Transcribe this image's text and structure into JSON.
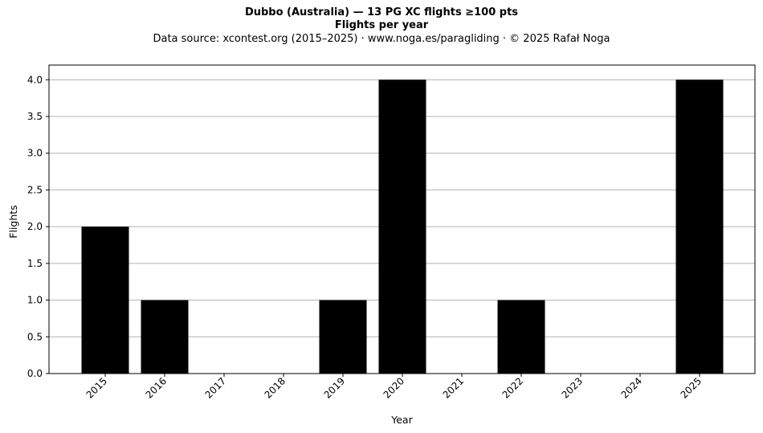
{
  "header": {
    "title": "Dubbo (Australia)  —  13 PG XC flights ≥100 pts",
    "subtitle": "Flights per year",
    "source": "Data source: xcontest.org (2015–2025)  ·  www.noga.es/paragliding  ·  © 2025 Rafał Noga"
  },
  "chart_data": {
    "type": "bar",
    "title": "Dubbo (Australia)  —  13 PG XC flights ≥100 pts",
    "subtitle": "Flights per year",
    "xlabel": "Year",
    "ylabel": "Flights",
    "categories": [
      "2015",
      "2016",
      "2017",
      "2018",
      "2019",
      "2020",
      "2021",
      "2022",
      "2023",
      "2024",
      "2025"
    ],
    "values": [
      2,
      1,
      0,
      0,
      1,
      4,
      0,
      1,
      0,
      0,
      4
    ],
    "ylim": [
      0,
      4.2
    ],
    "yticks": [
      "0.0",
      "0.5",
      "1.0",
      "1.5",
      "2.0",
      "2.5",
      "3.0",
      "3.5",
      "4.0"
    ],
    "grid": "y",
    "bar_color": "#000000",
    "grid_color": "#b0b0b0"
  }
}
